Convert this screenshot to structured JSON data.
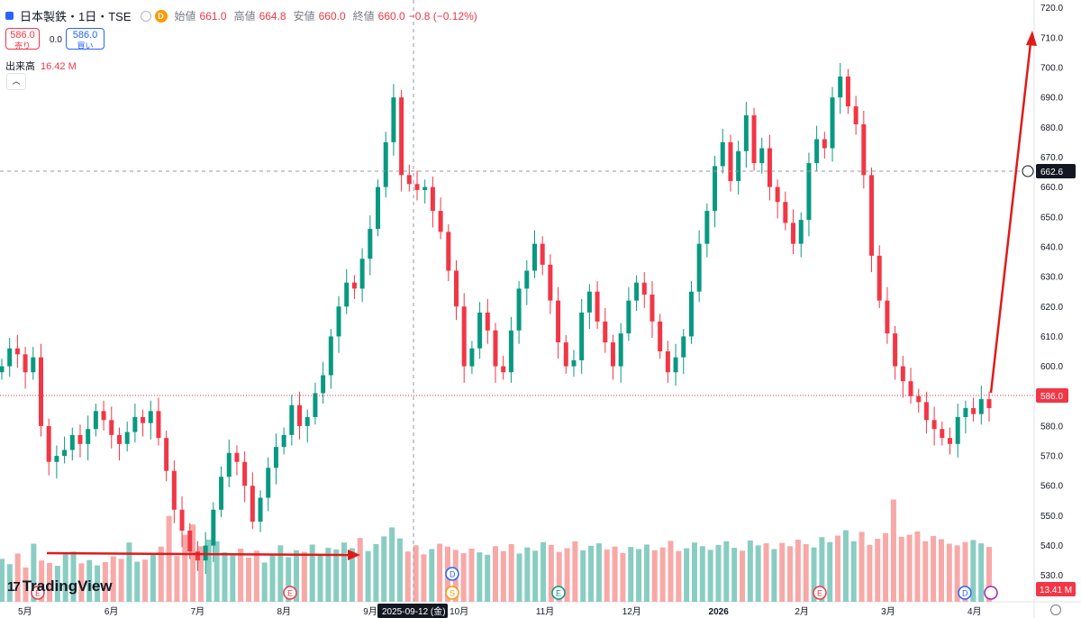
{
  "legend": {
    "symbol": "日本製鉄・1日・TSE",
    "open_label": "始値",
    "open_value": "661.0",
    "high_label": "高値",
    "high_value": "664.8",
    "low_label": "安値",
    "low_value": "660.0",
    "close_label": "終値",
    "close_value": "660.0",
    "change": "−0.8 (−0.12%)",
    "badge": "D"
  },
  "trade": {
    "sell_price": "586.0",
    "sell_label": "売り",
    "spread": "0.0",
    "buy_price": "586.0",
    "buy_label": "買い"
  },
  "volume_legend": {
    "label": "出来高",
    "value": "16.42 M"
  },
  "volume_last_badge": "13.41 M",
  "crosshair": {
    "price_label": "662.6",
    "date_label": "2025-09-12 (金)"
  },
  "last_price_label": "586.0",
  "brand": "TradingView",
  "colors": {
    "up": "#089981",
    "down": "#f23645",
    "up_vol": "#89cdc2",
    "down_vol": "#f7a9a7",
    "arrow": "#e01a1a"
  },
  "chart_data": {
    "type": "candlestick",
    "y_ticks": [
      530,
      540,
      550,
      560,
      570,
      580,
      590,
      600,
      610,
      620,
      630,
      640,
      650,
      660,
      670,
      680,
      690,
      700,
      710,
      720
    ],
    "ylim": [
      526,
      722
    ],
    "x_tick_labels": [
      "5月",
      "6月",
      "7月",
      "8月",
      "9月",
      "10月",
      "11月",
      "12月",
      "2026",
      "2月",
      "3月",
      "4月"
    ],
    "close_series": [
      600,
      606,
      604,
      598,
      603,
      580,
      568,
      570,
      572,
      577,
      574,
      579,
      585,
      582,
      577,
      574,
      578,
      583,
      581,
      585,
      576,
      565,
      552,
      545,
      538,
      535,
      540,
      552,
      563,
      571,
      568,
      560,
      548,
      556,
      566,
      573,
      577,
      587,
      580,
      583,
      591,
      597,
      610,
      620,
      628,
      626,
      636,
      646,
      660,
      675,
      690,
      664,
      661,
      659,
      660,
      652,
      645,
      632,
      620,
      600,
      606,
      618,
      612,
      600,
      598,
      612,
      626,
      632,
      641,
      634,
      622,
      608,
      600,
      602,
      618,
      625,
      615,
      608,
      600,
      611,
      622,
      628,
      624,
      615,
      605,
      598,
      603,
      610,
      625,
      641,
      652,
      667,
      675,
      662,
      672,
      684,
      668,
      673,
      660,
      655,
      648,
      641,
      649,
      668,
      676,
      673,
      690,
      697,
      687,
      681,
      664,
      637,
      622,
      611,
      600,
      595,
      590,
      588,
      582,
      579,
      576,
      574,
      583,
      586,
      584,
      589,
      586
    ],
    "volume_series_M": [
      10.5,
      9.2,
      11.8,
      8.4,
      14.2,
      10.1,
      9.5,
      8.8,
      11.6,
      12.3,
      9.4,
      10.2,
      8.9,
      9.7,
      11.1,
      10.5,
      14.5,
      9.8,
      10.3,
      12.0,
      13.5,
      21.0,
      11.2,
      16.4,
      18.9,
      13.6,
      15.2,
      14.8,
      12.1,
      11.3,
      13.0,
      10.8,
      12.5,
      9.6,
      11.4,
      13.8,
      10.9,
      12.6,
      12.2,
      14.0,
      11.5,
      13.2,
      12.8,
      14.5,
      13.1,
      15.6,
      12.4,
      14.1,
      16.0,
      18.2,
      15.5,
      12.3,
      13.8,
      11.6,
      12.9,
      14.2,
      13.5,
      12.7,
      11.9,
      13.0,
      12.1,
      11.5,
      13.6,
      12.4,
      14.1,
      11.8,
      13.3,
      12.5,
      14.6,
      13.9,
      12.2,
      13.1,
      14.8,
      12.6,
      13.7,
      14.3,
      12.8,
      13.5,
      11.9,
      13.4,
      12.9,
      14.0,
      12.6,
      13.3,
      14.9,
      12.4,
      13.1,
      14.5,
      13.6,
      12.7,
      13.9,
      14.8,
      13.2,
      12.5,
      15.0,
      13.8,
      14.3,
      12.9,
      14.4,
      13.6,
      15.2,
      14.1,
      13.3,
      15.8,
      14.6,
      16.2,
      17.5,
      14.8,
      17.1,
      13.9,
      15.4,
      16.8,
      25.0,
      15.9,
      16.4,
      17.2,
      14.8,
      16.1,
      15.3,
      14.2,
      13.8,
      14.6,
      15.1,
      14.3,
      13.41
    ],
    "annotations": [
      "E",
      "E",
      "D",
      "S",
      "E",
      "E",
      "D"
    ]
  }
}
